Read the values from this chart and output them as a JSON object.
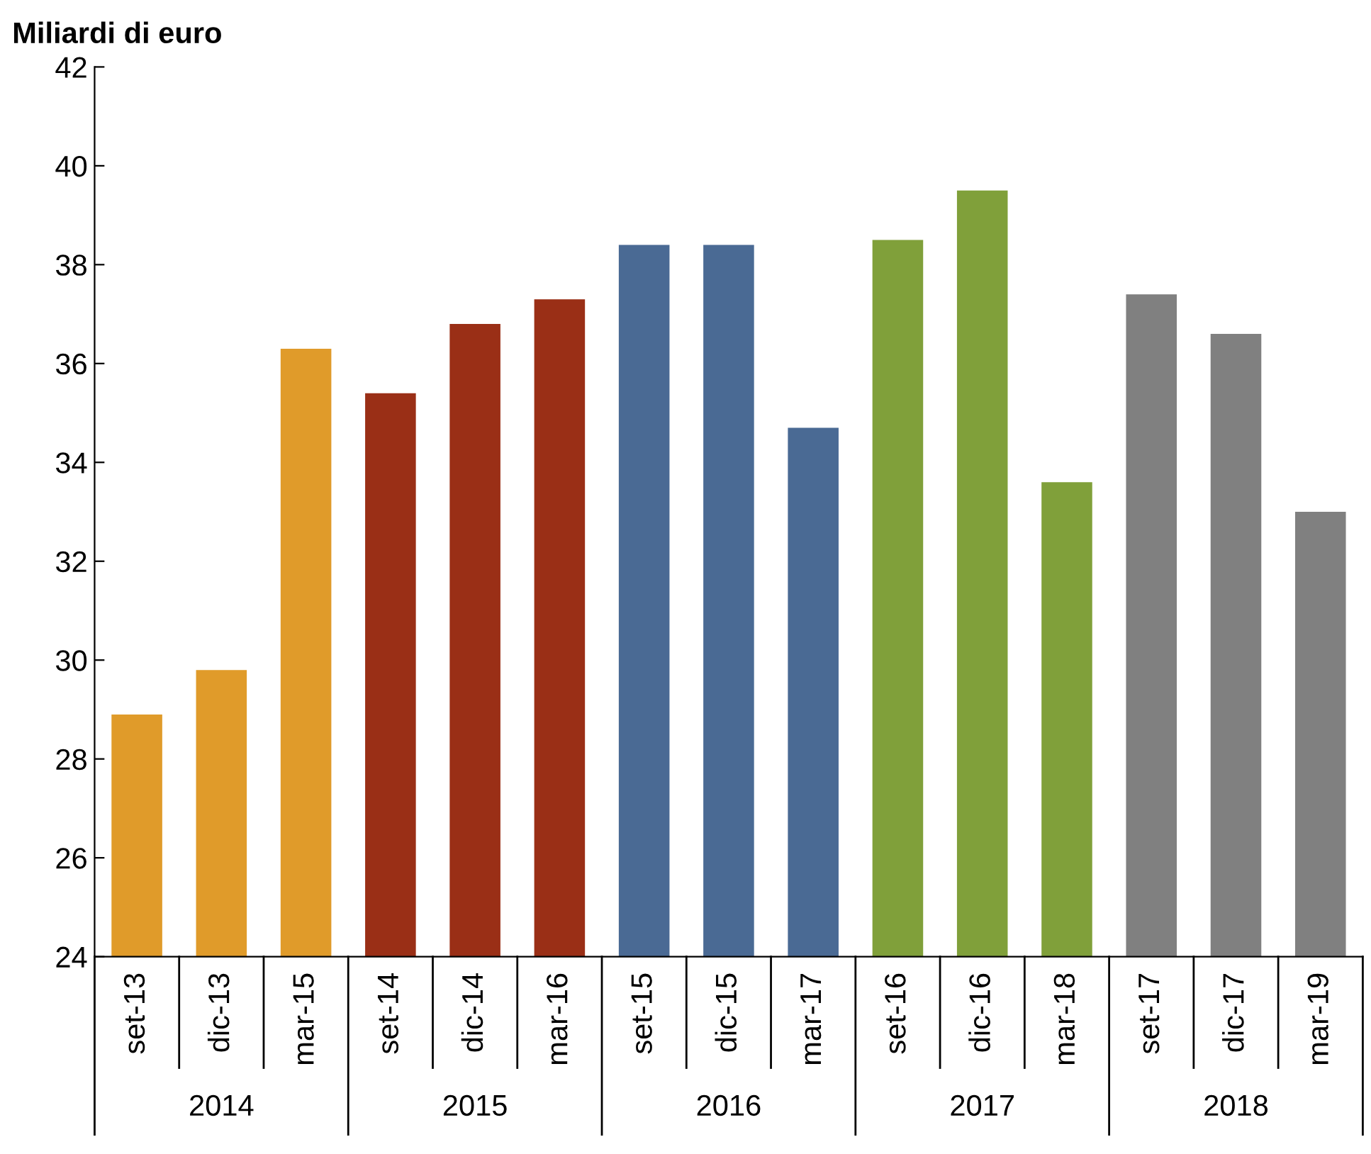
{
  "chart_data": {
    "type": "bar",
    "ylabel": "Miliardi di euro",
    "categories": [
      "set-13",
      "dic-13",
      "mar-15",
      "set-14",
      "dic-14",
      "mar-16",
      "set-15",
      "dic-15",
      "mar-17",
      "set-16",
      "dic-16",
      "mar-18",
      "set-17",
      "dic-17",
      "mar-19"
    ],
    "values": [
      28.9,
      29.8,
      36.3,
      35.4,
      36.8,
      37.3,
      38.4,
      38.4,
      34.7,
      38.5,
      39.5,
      33.6,
      37.4,
      36.6,
      33.0
    ],
    "colors": [
      "#e09b2a",
      "#e09b2a",
      "#e09b2a",
      "#9a2f16",
      "#9a2f16",
      "#9a2f16",
      "#4a6a94",
      "#4a6a94",
      "#4a6a94",
      "#80a03a",
      "#80a03a",
      "#80a03a",
      "#808080",
      "#808080",
      "#808080"
    ],
    "annotations": [
      "2014",
      "2015",
      "2016",
      "2017",
      "2018"
    ],
    "ylim": [
      24,
      42
    ],
    "yticks": [
      24,
      26,
      28,
      30,
      32,
      34,
      36,
      38,
      40,
      42
    ],
    "grid": false,
    "legend": false
  }
}
